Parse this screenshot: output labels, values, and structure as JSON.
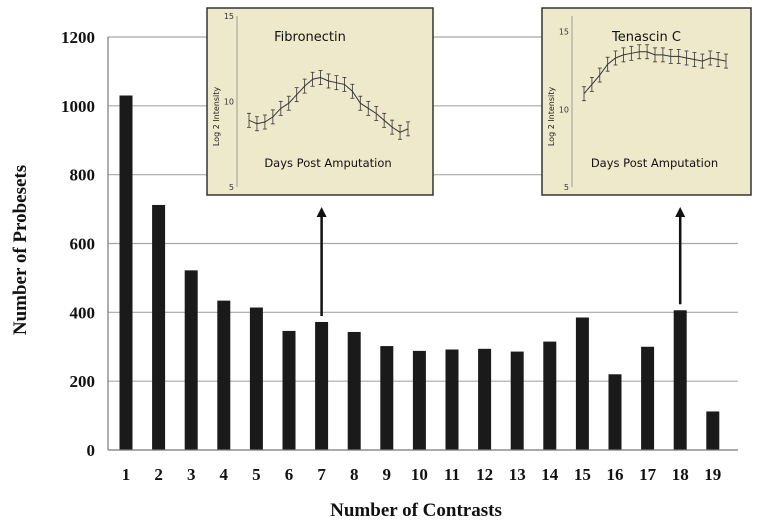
{
  "chart_data": {
    "type": "bar",
    "xlabel": "Number of Contrasts",
    "ylabel": "Number of Probesets",
    "ylim": [
      0,
      1200
    ],
    "yticks": [
      0,
      200,
      400,
      600,
      800,
      1000,
      1200
    ],
    "grid": true,
    "categories": [
      "1",
      "2",
      "3",
      "4",
      "5",
      "6",
      "7",
      "8",
      "9",
      "10",
      "11",
      "12",
      "13",
      "14",
      "15",
      "16",
      "17",
      "18",
      "19"
    ],
    "values": [
      1030,
      712,
      522,
      434,
      414,
      346,
      372,
      343,
      302,
      288,
      292,
      294,
      286,
      315,
      385,
      220,
      300,
      406,
      112
    ],
    "bar_color": "#1a1a1a",
    "annotations": [
      {
        "arrow_from_category": "7",
        "inset": {
          "title": "Fibronectin",
          "xlabel": "Days Post Amputation",
          "ylabel": "Log 2 Intensity",
          "yticks": [
            5,
            10,
            15
          ],
          "ylim": [
            5,
            15
          ],
          "values": [
            8.9,
            8.7,
            8.8,
            9.1,
            9.6,
            9.9,
            10.4,
            10.9,
            11.3,
            11.4,
            11.2,
            11.1,
            11.0,
            10.6,
            9.9,
            9.6,
            9.3,
            8.9,
            8.5,
            8.2,
            8.4
          ]
        }
      },
      {
        "arrow_from_category": "18",
        "inset": {
          "title": "Tenascin C",
          "xlabel": "Days Post Amputation",
          "ylabel": "Log 2 Intensity",
          "yticks": [
            5,
            10,
            15
          ],
          "ylim": [
            5,
            16
          ],
          "values": [
            11.0,
            11.6,
            12.2,
            12.9,
            13.3,
            13.5,
            13.6,
            13.7,
            13.7,
            13.5,
            13.5,
            13.4,
            13.4,
            13.3,
            13.2,
            13.1,
            13.3,
            13.2,
            13.1
          ]
        }
      }
    ],
    "inset_background": "#efe9cc"
  }
}
